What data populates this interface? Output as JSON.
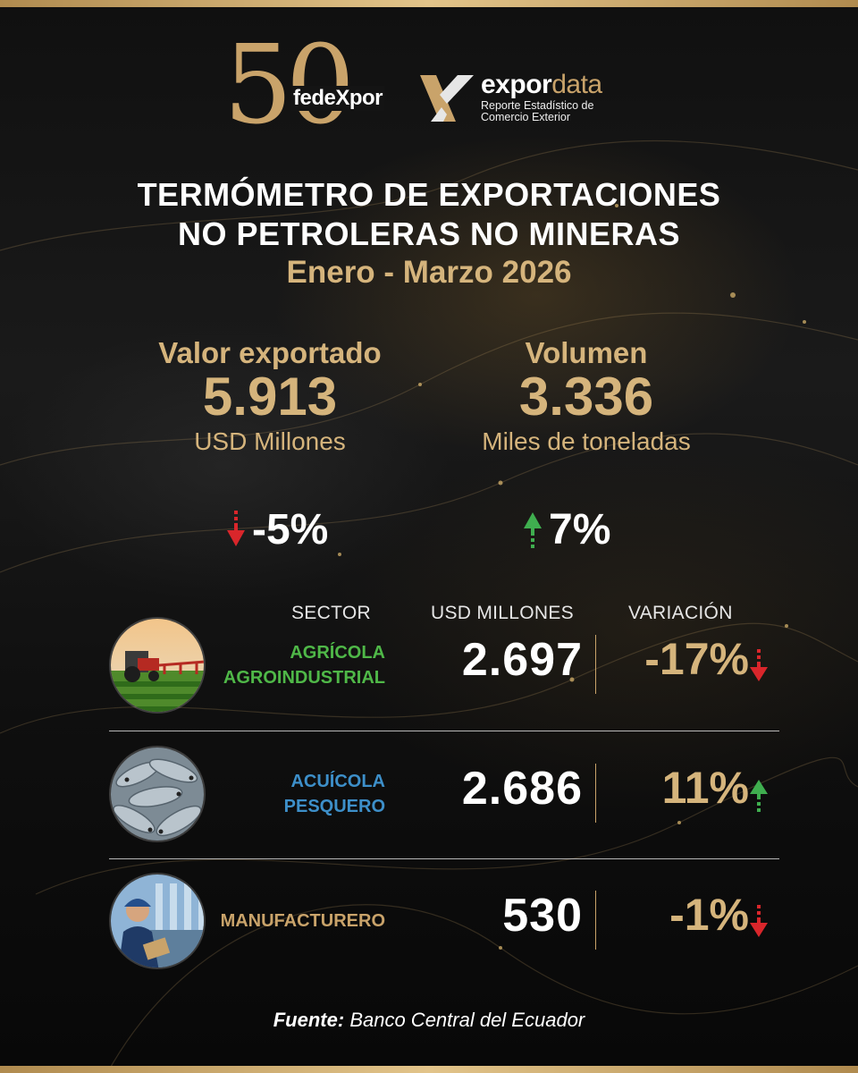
{
  "logos": {
    "anniversary_digits": "50",
    "anniversary_word": "fedeXpor",
    "brand_prefix": "expor",
    "brand_suffix": "data",
    "tagline_line1": "Reporte Estadístico de",
    "tagline_line2": "Comercio Exterior"
  },
  "header": {
    "title_line1": "TERMÓMETRO DE EXPORTACIONES",
    "title_line2": "NO PETROLERAS NO MINERAS",
    "period": "Enero - Marzo 2026"
  },
  "kpis": [
    {
      "label": "Valor exportado",
      "value": "5.913",
      "unit": "USD Millones",
      "change": "-5%",
      "direction": "down"
    },
    {
      "label": "Volumen",
      "value": "3.336",
      "unit": "Miles de toneladas",
      "change": "7%",
      "direction": "up"
    }
  ],
  "table": {
    "headers": {
      "sector": "SECTOR",
      "usd": "USD MILLONES",
      "variation": "VARIACIÓN"
    },
    "rows": [
      {
        "sector_line1": "AGRÍCOLA",
        "sector_line2": "AGROINDUSTRIAL",
        "usd": "2.697",
        "variation": "-17%",
        "direction": "down",
        "sector_color": "#4fb848",
        "image_icon": "tractor-field-icon"
      },
      {
        "sector_line1": "ACUÍCOLA",
        "sector_line2": "PESQUERO",
        "usd": "2.686",
        "variation": "11%",
        "direction": "up",
        "sector_color": "#3d8fc9",
        "image_icon": "fish-icon"
      },
      {
        "sector_line1": "MANUFACTURERO",
        "sector_line2": "",
        "usd": "530",
        "variation": "-1%",
        "direction": "down",
        "sector_color": "#c9a36a",
        "image_icon": "factory-worker-icon"
      }
    ]
  },
  "footer": {
    "source_label": "Fuente:",
    "source_value": "Banco Central del Ecuador"
  },
  "colors": {
    "gold": "#d5b47c",
    "up": "#3fae4f",
    "down": "#d9262b"
  }
}
